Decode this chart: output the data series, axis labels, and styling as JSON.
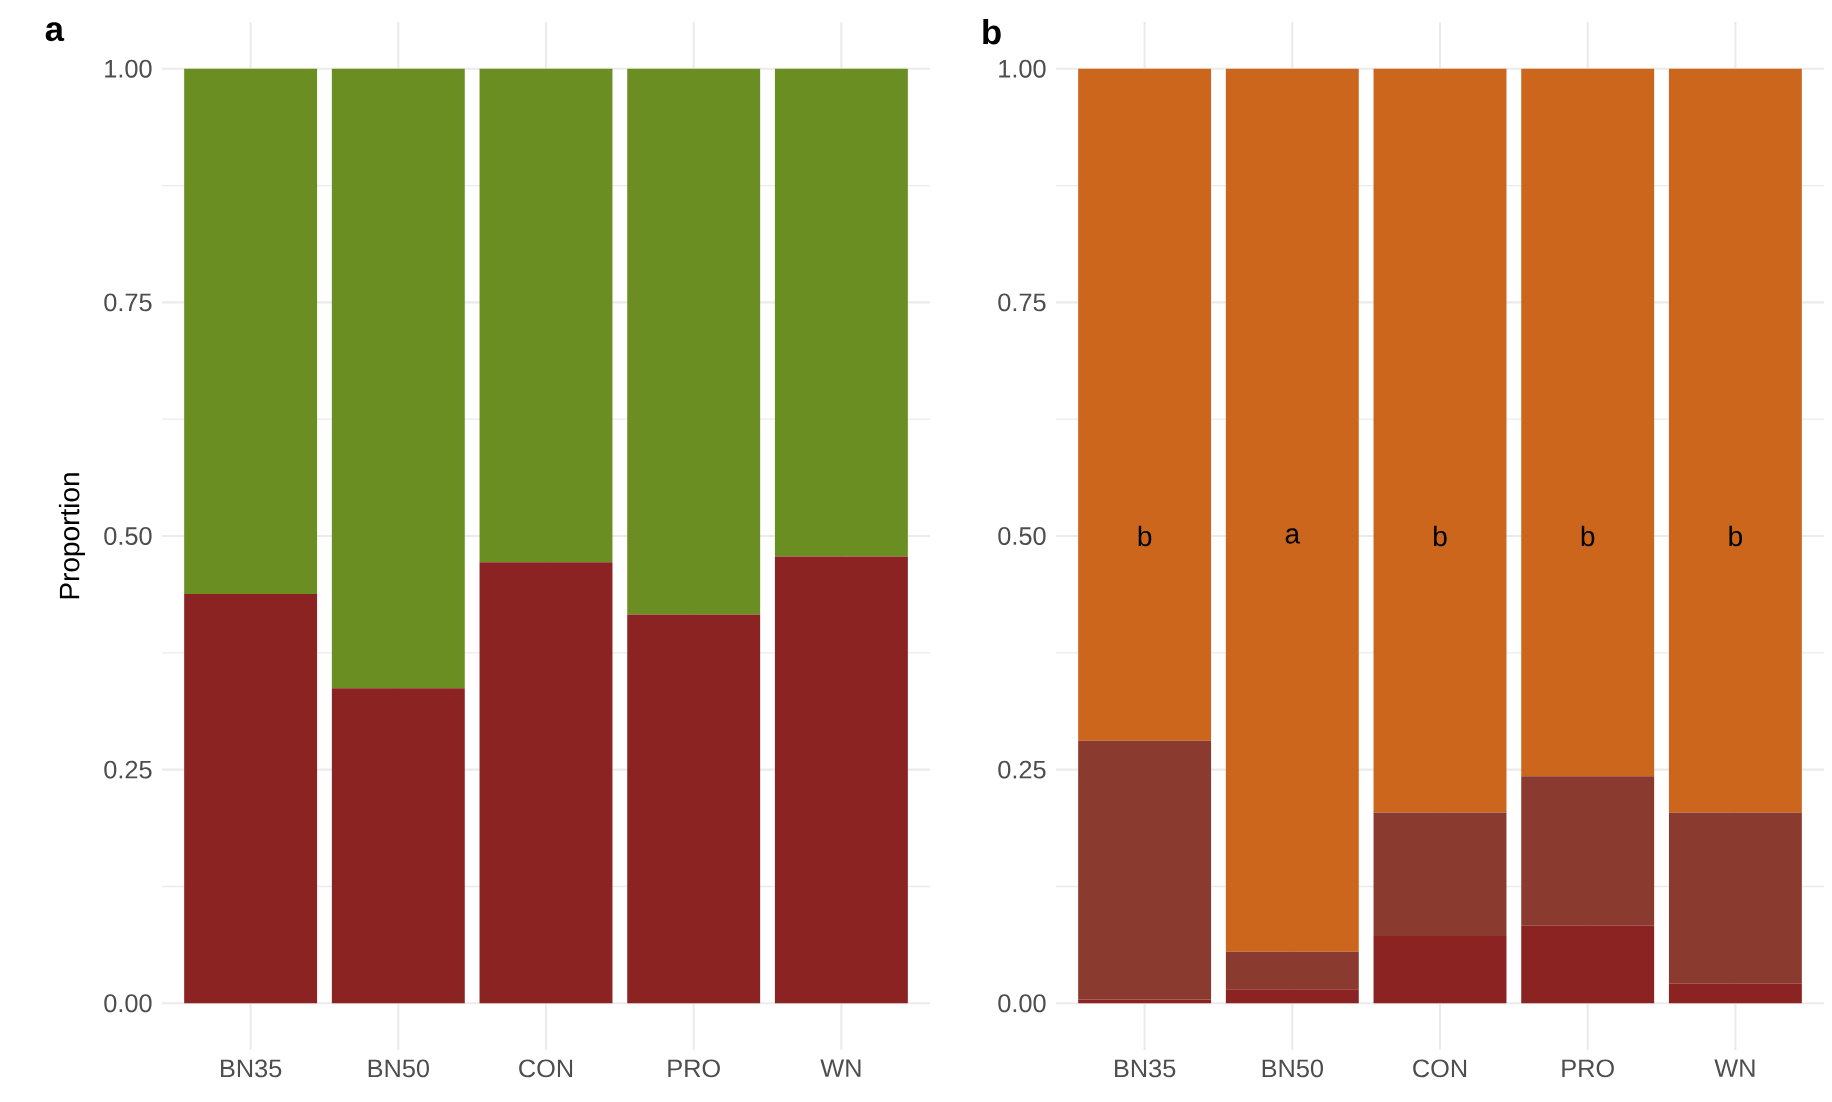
{
  "chart_data": [
    {
      "type": "bar",
      "title": "a",
      "ylabel": "Proportion",
      "stacked": true,
      "grid": true,
      "categories": [
        "BN35",
        "BN50",
        "CON",
        "PRO",
        "WN"
      ],
      "series": [
        {
          "color": "#8b2323",
          "values": [
            0.438,
            0.337,
            0.472,
            0.416,
            0.478
          ]
        },
        {
          "color": "#6b8e23",
          "values": [
            0.562,
            0.663,
            0.528,
            0.584,
            0.522
          ]
        }
      ],
      "ylim": [
        -0.05,
        1.05
      ],
      "yticks": [
        {
          "value": 0,
          "label": "0.00"
        },
        {
          "value": 0.25,
          "label": "0.25"
        },
        {
          "value": 0.5,
          "label": "0.50"
        },
        {
          "value": 0.75,
          "label": "0.75"
        },
        {
          "value": 1,
          "label": "1.00"
        }
      ]
    },
    {
      "type": "bar",
      "title": "b",
      "stacked": true,
      "grid": true,
      "categories": [
        "BN35",
        "BN50",
        "CON",
        "PRO",
        "WN"
      ],
      "series": [
        {
          "color": "#8b2323",
          "values": [
            0.004,
            0.015,
            0.072,
            0.083,
            0.021
          ]
        },
        {
          "color": "#8b3a2f",
          "values": [
            0.277,
            0.04,
            0.132,
            0.16,
            0.183
          ]
        },
        {
          "color": "#cd661d",
          "values": [
            0.719,
            0.945,
            0.796,
            0.757,
            0.796
          ]
        }
      ],
      "ylim": [
        -0.05,
        1.05
      ],
      "yticks": [
        {
          "value": 0,
          "label": "0.00"
        },
        {
          "value": 0.25,
          "label": "0.25"
        },
        {
          "value": 0.5,
          "label": "0.50"
        },
        {
          "value": 0.75,
          "label": "0.75"
        },
        {
          "value": 1,
          "label": "1.00"
        }
      ],
      "annotations": [
        "b",
        "a",
        "b",
        "b",
        "b"
      ]
    }
  ]
}
